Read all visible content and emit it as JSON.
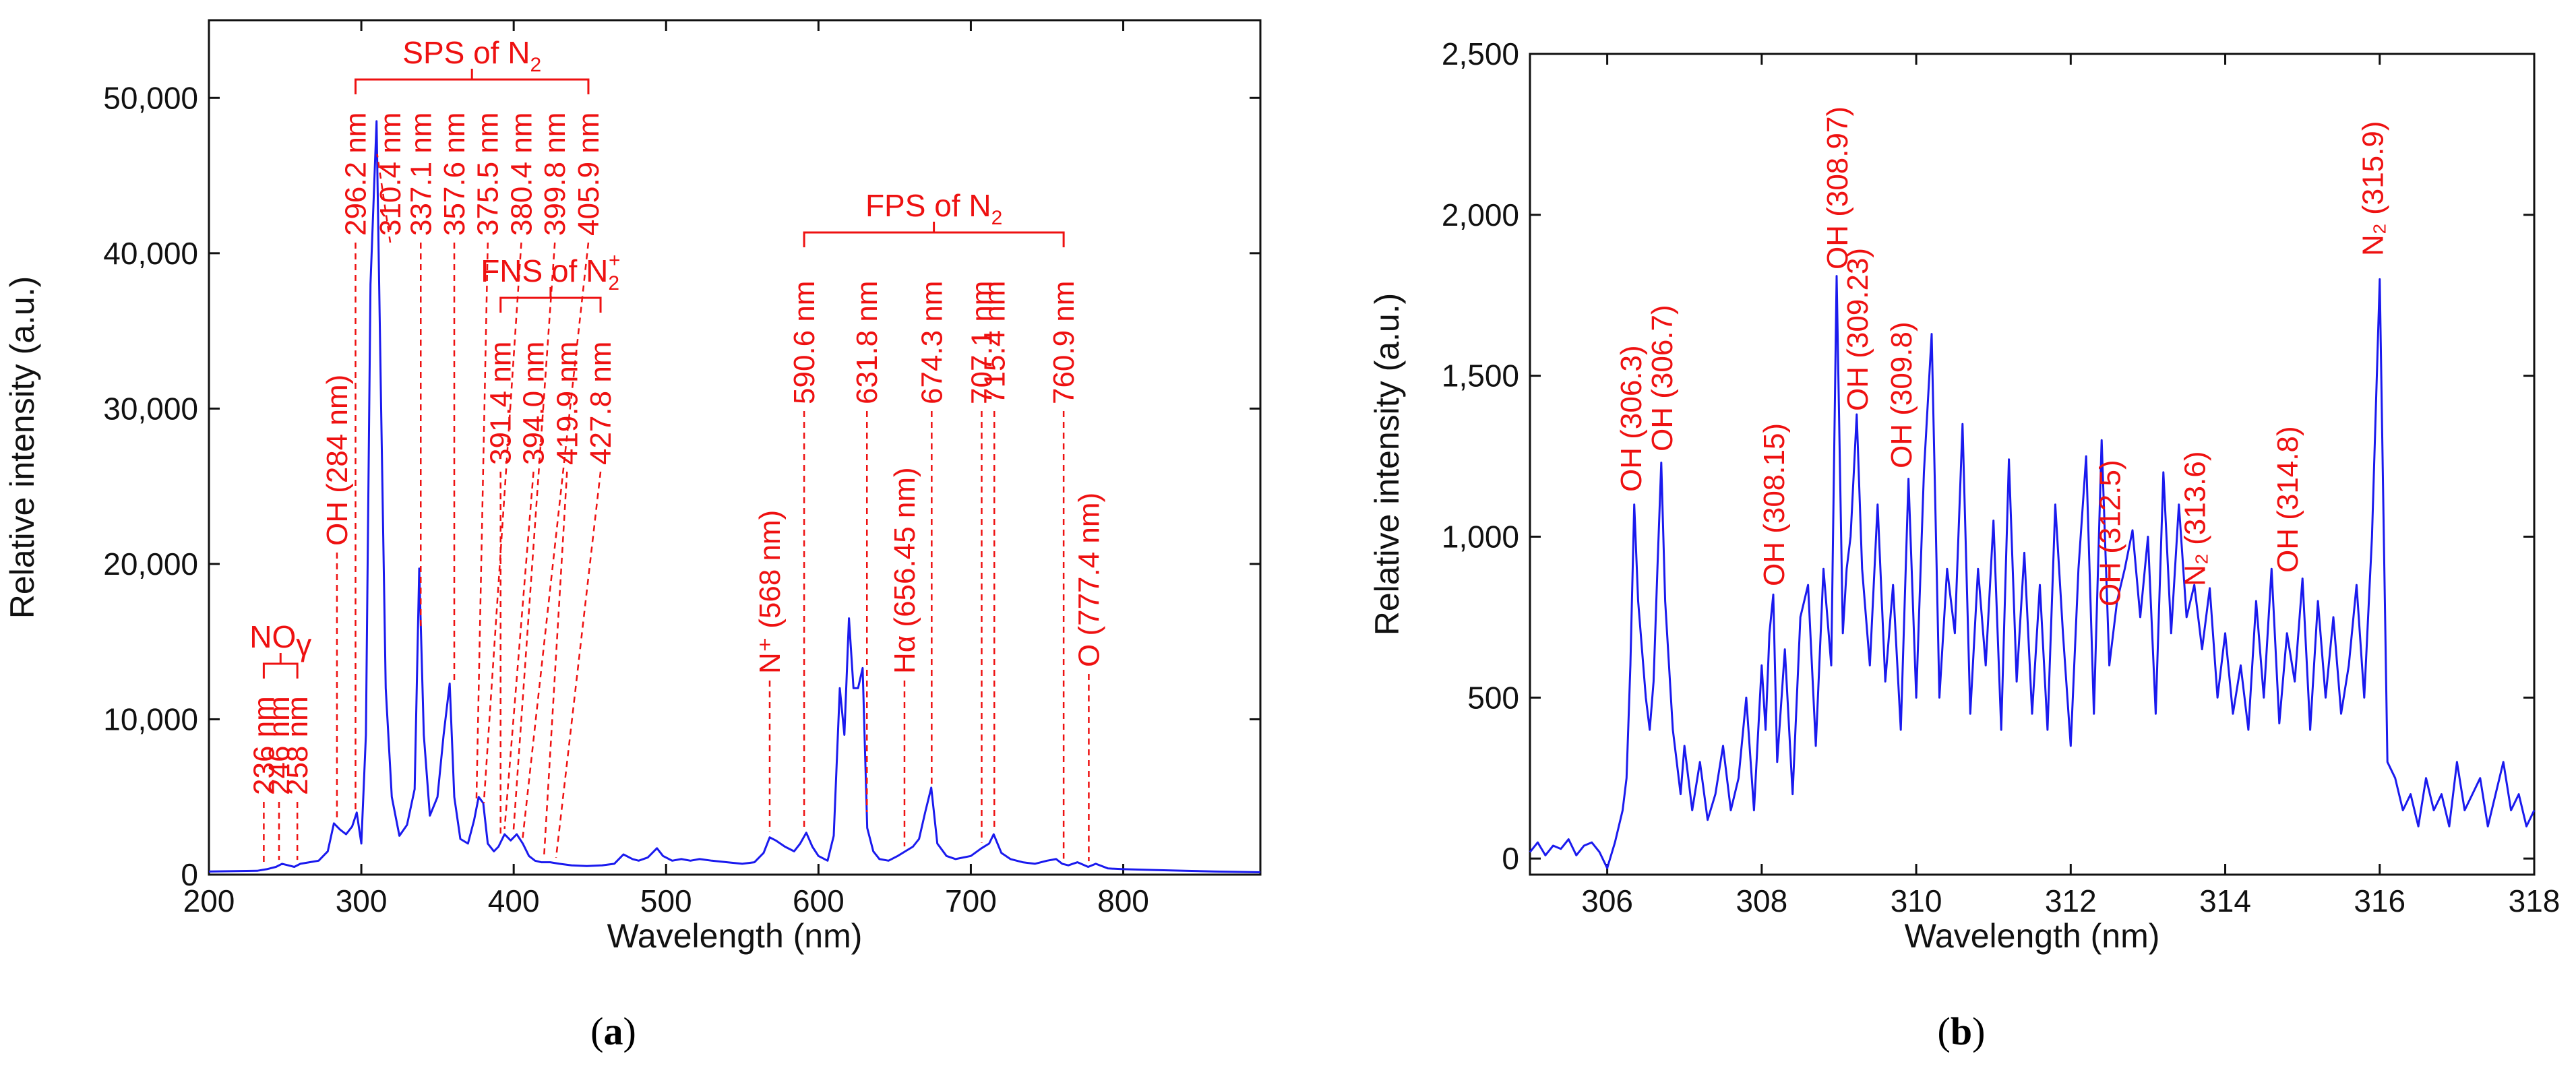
{
  "colors": {
    "line": "#1a1aee",
    "annotation": "#ee1111",
    "axis": "#111111"
  },
  "panels": [
    {
      "label_open": "(",
      "label_letter": "a",
      "label_close": ")"
    },
    {
      "label_open": "(",
      "label_letter": "b",
      "label_close": ")"
    }
  ],
  "chart_data": [
    {
      "type": "line",
      "xlabel": "Wavelength (nm)",
      "ylabel": "Relative intensity (a.u.)",
      "xlim": [
        200,
        890
      ],
      "ylim": [
        0,
        55000
      ],
      "xticks": [
        200,
        300,
        400,
        500,
        600,
        700,
        800
      ],
      "xtick_labels": [
        "200",
        "300",
        "400",
        "500",
        "600",
        "700",
        "800"
      ],
      "yticks": [
        0,
        10000,
        20000,
        30000,
        40000,
        50000
      ],
      "ytick_labels": [
        "0",
        "10,000",
        "20,000",
        "30,000",
        "40,000",
        "50,000"
      ],
      "grid": false,
      "series": [
        {
          "x": [
            200,
            232,
            238,
            244,
            248,
            252,
            256,
            260,
            266,
            272,
            278,
            282,
            286,
            290,
            294,
            297,
            300,
            303,
            306,
            310,
            313,
            316,
            320,
            325,
            330,
            335,
            338,
            341,
            345,
            350,
            354,
            358,
            361,
            365,
            370,
            374,
            377,
            380,
            383,
            387,
            390,
            394,
            398,
            402,
            406,
            410,
            414,
            418,
            424,
            430,
            438,
            448,
            458,
            466,
            472,
            478,
            482,
            488,
            494,
            498,
            504,
            510,
            516,
            522,
            530,
            540,
            550,
            558,
            564,
            568,
            572,
            578,
            584,
            588,
            592,
            596,
            600,
            606,
            610,
            614,
            617,
            620,
            623,
            626,
            629,
            632,
            636,
            640,
            646,
            652,
            657,
            662,
            666,
            670,
            674,
            678,
            684,
            690,
            700,
            707,
            712,
            715,
            720,
            726,
            734,
            742,
            750,
            756,
            760,
            764,
            770,
            777,
            782,
            790,
            800,
            820,
            840,
            860,
            890
          ],
          "y": [
            200,
            250,
            350,
            500,
            700,
            600,
            500,
            700,
            800,
            900,
            1500,
            3300,
            2900,
            2600,
            3100,
            4000,
            2000,
            9000,
            38000,
            48500,
            30000,
            12000,
            5000,
            2500,
            3200,
            5500,
            19700,
            9000,
            3800,
            5000,
            9000,
            12300,
            5000,
            2300,
            2000,
            3500,
            5000,
            4600,
            2000,
            1500,
            1800,
            2600,
            2200,
            2600,
            2000,
            1200,
            900,
            800,
            800,
            700,
            600,
            550,
            600,
            700,
            1300,
            1000,
            900,
            1100,
            1700,
            1200,
            900,
            1000,
            900,
            1000,
            900,
            800,
            700,
            800,
            1400,
            2400,
            2200,
            1800,
            1500,
            2000,
            2700,
            1800,
            1200,
            900,
            2500,
            12000,
            9000,
            16500,
            12000,
            12000,
            13300,
            3000,
            1500,
            1000,
            900,
            1200,
            1500,
            1800,
            2300,
            4000,
            5600,
            2000,
            1200,
            1000,
            1200,
            1700,
            2000,
            2600,
            1400,
            1000,
            800,
            700,
            900,
            1000,
            700,
            600,
            800,
            500,
            700,
            400,
            350,
            300,
            250,
            200,
            150
          ]
        }
      ],
      "annotations": [
        {
          "text": "236 nm",
          "x": 236
        },
        {
          "text": "246 nm",
          "x": 246
        },
        {
          "text": "258 nm",
          "x": 258
        },
        {
          "text": "OH (284 nm)",
          "x": 284
        },
        {
          "text": "296.2 nm",
          "x": 296.2
        },
        {
          "text": "310.4 nm",
          "x": 310.4
        },
        {
          "text": "337.1 nm",
          "x": 337.1
        },
        {
          "text": "357.6 nm",
          "x": 357.6
        },
        {
          "text": "375.5 nm",
          "x": 375.5
        },
        {
          "text": "380.4 nm",
          "x": 380.4
        },
        {
          "text": "399.8 nm",
          "x": 399.8
        },
        {
          "text": "405.9 nm",
          "x": 405.9
        },
        {
          "text": "391.4 nm",
          "x": 391.4
        },
        {
          "text": "394.0 nm",
          "x": 394.0
        },
        {
          "text": "419.9 nm",
          "x": 419.9
        },
        {
          "text": "427.8 nm",
          "x": 427.8
        },
        {
          "text": "N⁺ (568 nm)",
          "x": 568
        },
        {
          "text": "590.6 nm",
          "x": 590.6
        },
        {
          "text": "631.8 nm",
          "x": 631.8
        },
        {
          "text": "Hα (656.45 nm)",
          "x": 656.45
        },
        {
          "text": "674.3 nm",
          "x": 674.3
        },
        {
          "text": "707.1 nm",
          "x": 707.1
        },
        {
          "text": "715.4 nm",
          "x": 715.4
        },
        {
          "text": "760.9 nm",
          "x": 760.9
        },
        {
          "text": "O (777.4 nm)",
          "x": 777.4
        }
      ],
      "brackets": [
        {
          "prefix": "NO",
          "sub": "",
          "sup": "",
          "suffix": "γ",
          "x_range": [
            236,
            258
          ]
        },
        {
          "prefix": "SPS of N",
          "sub": "2",
          "sup": "",
          "suffix": "",
          "x_range": [
            296.2,
            405.9
          ]
        },
        {
          "prefix": "FNS of N",
          "sub": "2",
          "sup": "+",
          "suffix": "",
          "x_range": [
            391.4,
            427.8
          ]
        },
        {
          "prefix": "FPS of N",
          "sub": "2",
          "sup": "",
          "suffix": "",
          "x_range": [
            590.6,
            760.9
          ]
        }
      ]
    },
    {
      "type": "line",
      "xlabel": "Wavelength (nm)",
      "ylabel": "Relative intensity (a.u.)",
      "xlim": [
        305,
        318
      ],
      "ylim": [
        -50,
        2500
      ],
      "xticks": [
        306,
        308,
        310,
        312,
        314,
        316,
        318
      ],
      "xtick_labels": [
        "306",
        "308",
        "310",
        "312",
        "314",
        "316",
        "318"
      ],
      "yticks": [
        0,
        500,
        1000,
        1500,
        2000,
        2500
      ],
      "ytick_labels": [
        "0",
        "500",
        "1,000",
        "1,500",
        "2,000",
        "2,500"
      ],
      "grid": false,
      "series": [
        {
          "x": [
            305.0,
            305.1,
            305.2,
            305.3,
            305.4,
            305.5,
            305.6,
            305.7,
            305.8,
            305.9,
            306.0,
            306.1,
            306.2,
            306.25,
            306.3,
            306.35,
            306.4,
            306.45,
            306.5,
            306.55,
            306.6,
            306.65,
            306.7,
            306.75,
            306.8,
            306.85,
            306.9,
            306.95,
            307.0,
            307.05,
            307.1,
            307.2,
            307.3,
            307.4,
            307.5,
            307.6,
            307.7,
            307.8,
            307.9,
            308.0,
            308.05,
            308.1,
            308.15,
            308.2,
            308.3,
            308.4,
            308.5,
            308.6,
            308.7,
            308.8,
            308.9,
            308.97,
            309.05,
            309.1,
            309.15,
            309.23,
            309.3,
            309.4,
            309.5,
            309.6,
            309.7,
            309.8,
            309.9,
            310.0,
            310.1,
            310.2,
            310.3,
            310.4,
            310.5,
            310.6,
            310.7,
            310.8,
            310.9,
            311.0,
            311.1,
            311.2,
            311.3,
            311.4,
            311.5,
            311.6,
            311.7,
            311.8,
            311.9,
            312.0,
            312.1,
            312.2,
            312.3,
            312.4,
            312.5,
            312.6,
            312.7,
            312.8,
            312.9,
            313.0,
            313.1,
            313.2,
            313.3,
            313.4,
            313.5,
            313.6,
            313.7,
            313.8,
            313.9,
            314.0,
            314.1,
            314.2,
            314.3,
            314.4,
            314.5,
            314.6,
            314.7,
            314.8,
            314.9,
            315.0,
            315.1,
            315.2,
            315.3,
            315.4,
            315.5,
            315.6,
            315.7,
            315.8,
            315.9,
            316.0,
            316.1,
            316.2,
            316.3,
            316.4,
            316.5,
            316.6,
            316.7,
            316.8,
            316.9,
            317.0,
            317.1,
            317.2,
            317.3,
            317.4,
            317.5,
            317.6,
            317.7,
            317.8,
            317.9,
            318.0
          ],
          "y": [
            20,
            50,
            10,
            40,
            30,
            60,
            10,
            40,
            50,
            20,
            -30,
            50,
            150,
            250,
            600,
            1100,
            800,
            650,
            500,
            400,
            550,
            900,
            1230,
            800,
            600,
            400,
            300,
            200,
            350,
            250,
            150,
            300,
            120,
            200,
            350,
            150,
            250,
            500,
            150,
            600,
            400,
            700,
            820,
            300,
            650,
            200,
            750,
            850,
            350,
            900,
            600,
            1810,
            700,
            900,
            1000,
            1380,
            900,
            600,
            1100,
            550,
            850,
            400,
            1180,
            500,
            1200,
            1630,
            500,
            900,
            700,
            1350,
            450,
            900,
            600,
            1050,
            400,
            1240,
            550,
            950,
            450,
            850,
            400,
            1100,
            700,
            350,
            900,
            1250,
            450,
            1300,
            600,
            800,
            900,
            1020,
            750,
            1000,
            450,
            1200,
            700,
            1100,
            750,
            850,
            650,
            840,
            500,
            700,
            450,
            600,
            400,
            800,
            500,
            900,
            420,
            700,
            550,
            870,
            400,
            800,
            500,
            750,
            450,
            600,
            850,
            500,
            1000,
            1800,
            300,
            250,
            150,
            200,
            100,
            250,
            150,
            200,
            100,
            300,
            150,
            200,
            250,
            100,
            200,
            300,
            150,
            200,
            100,
            150
          ]
        }
      ],
      "annotations": [
        {
          "text": "OH (306.3)",
          "x": 306.3
        },
        {
          "text": "OH (306.7)",
          "x": 306.7
        },
        {
          "text": "OH (308.15)",
          "x": 308.15
        },
        {
          "text": "OH (308.97)",
          "x": 308.97
        },
        {
          "text": "OH (309.23)",
          "x": 309.23
        },
        {
          "text": "OH (309.8)",
          "x": 309.8
        },
        {
          "text": "OH (312.5)",
          "x": 312.5
        },
        {
          "text": "N₂ (313.6)",
          "x": 313.6
        },
        {
          "text": "OH (314.8)",
          "x": 314.8
        },
        {
          "text": "N₂ (315.9)",
          "x": 315.9
        }
      ]
    }
  ]
}
